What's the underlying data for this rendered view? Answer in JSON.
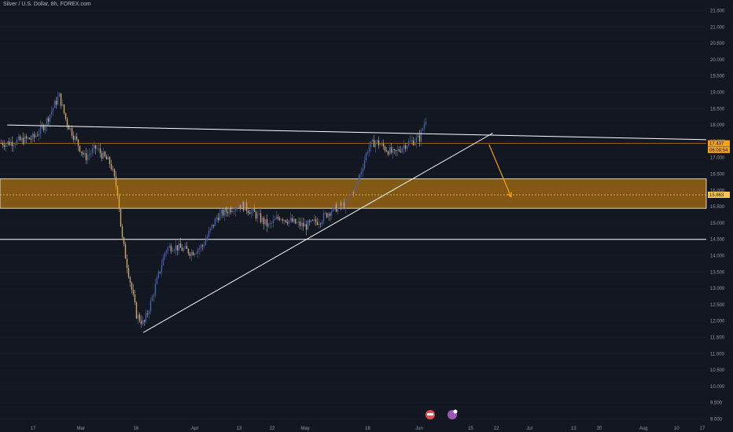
{
  "header": {
    "title": "Silver / U.S. Dollar, 8h, FOREX.com"
  },
  "colors": {
    "background": "#131722",
    "up_candle": "#2962ff",
    "down_candle": "#f7a21b",
    "zone_fill": "#a86f10",
    "trend_line": "#ffffff",
    "projection": "#f7a21b"
  },
  "price_tags": {
    "last_price": "17.437",
    "countdown": "06:09:54",
    "target_price": "15.863"
  },
  "badges": [
    "earnings-icon",
    "dividends-icon"
  ],
  "chart_data": {
    "type": "candlestick",
    "title": "Silver / U.S. Dollar, 8h, FOREX.com",
    "y_ticks": [
      "21.500",
      "21.000",
      "20.500",
      "20.000",
      "19.500",
      "19.000",
      "18.500",
      "18.000",
      "17.500",
      "17.000",
      "16.500",
      "16.000",
      "15.500",
      "15.000",
      "14.500",
      "14.000",
      "13.500",
      "13.000",
      "12.500",
      "12.000",
      "11.500",
      "11.000",
      "10.500",
      "10.000",
      "9.500",
      "9.000"
    ],
    "ylim": [
      8.95,
      21.6
    ],
    "x_ticks": [
      "17",
      "Mar",
      "16",
      "Apr",
      "13",
      "22",
      "May",
      "18",
      "Jun",
      "15",
      "22",
      "Jul",
      "13",
      "20",
      "Aug",
      "10",
      "17"
    ],
    "x_range": [
      "2020-02-17",
      "2020-08-17"
    ],
    "series_close_points": [
      [
        "2020-02-10",
        17.45
      ],
      [
        "2020-02-17",
        17.6
      ],
      [
        "2020-02-20",
        18.0
      ],
      [
        "2020-02-24",
        18.9
      ],
      [
        "2020-02-26",
        18.1
      ],
      [
        "2020-03-02",
        17.0
      ],
      [
        "2020-03-05",
        17.3
      ],
      [
        "2020-03-09",
        16.8
      ],
      [
        "2020-03-11",
        15.9
      ],
      [
        "2020-03-12",
        14.6
      ],
      [
        "2020-03-16",
        12.2
      ],
      [
        "2020-03-18",
        11.9
      ],
      [
        "2020-03-20",
        12.6
      ],
      [
        "2020-03-24",
        14.2
      ],
      [
        "2020-03-26",
        14.3
      ],
      [
        "2020-03-31",
        14.1
      ],
      [
        "2020-04-03",
        14.3
      ],
      [
        "2020-04-07",
        15.2
      ],
      [
        "2020-04-10",
        15.4
      ],
      [
        "2020-04-13",
        15.6
      ],
      [
        "2020-04-17",
        15.3
      ],
      [
        "2020-04-21",
        14.9
      ],
      [
        "2020-04-24",
        15.2
      ],
      [
        "2020-04-28",
        15.0
      ],
      [
        "2020-05-01",
        14.9
      ],
      [
        "2020-05-05",
        15.1
      ],
      [
        "2020-05-08",
        15.4
      ],
      [
        "2020-05-12",
        15.6
      ],
      [
        "2020-05-15",
        16.2
      ],
      [
        "2020-05-18",
        17.3
      ],
      [
        "2020-05-20",
        17.5
      ],
      [
        "2020-05-25",
        17.1
      ],
      [
        "2020-05-28",
        17.4
      ],
      [
        "2020-06-01",
        17.6
      ],
      [
        "2020-06-03",
        18.3
      ],
      [
        "2020-06-05",
        17.9
      ],
      [
        "2020-06-09",
        17.4
      ],
      [
        "2020-06-12",
        17.8
      ],
      [
        "2020-06-14",
        18.4
      ],
      [
        "2020-06-16",
        17.8
      ],
      [
        "2020-06-18",
        17.3
      ],
      [
        "2020-06-19",
        17.45
      ]
    ],
    "resistance_line": {
      "from": [
        "2020-02-10",
        18.0
      ],
      "to": [
        "2020-06-21",
        17.75
      ],
      "extended_to": [
        "2020-08-19",
        17.55
      ]
    },
    "support_trendline": {
      "from": [
        "2020-03-18",
        11.65
      ],
      "to": [
        "2020-06-21",
        17.75
      ]
    },
    "horizontal_support": 14.5,
    "zone": {
      "top": 16.35,
      "bottom": 15.45,
      "mid": 15.863
    },
    "projection": {
      "from": [
        "2020-06-20",
        17.4
      ],
      "to": [
        "2020-06-26",
        15.8
      ]
    },
    "last_price": 17.437
  }
}
